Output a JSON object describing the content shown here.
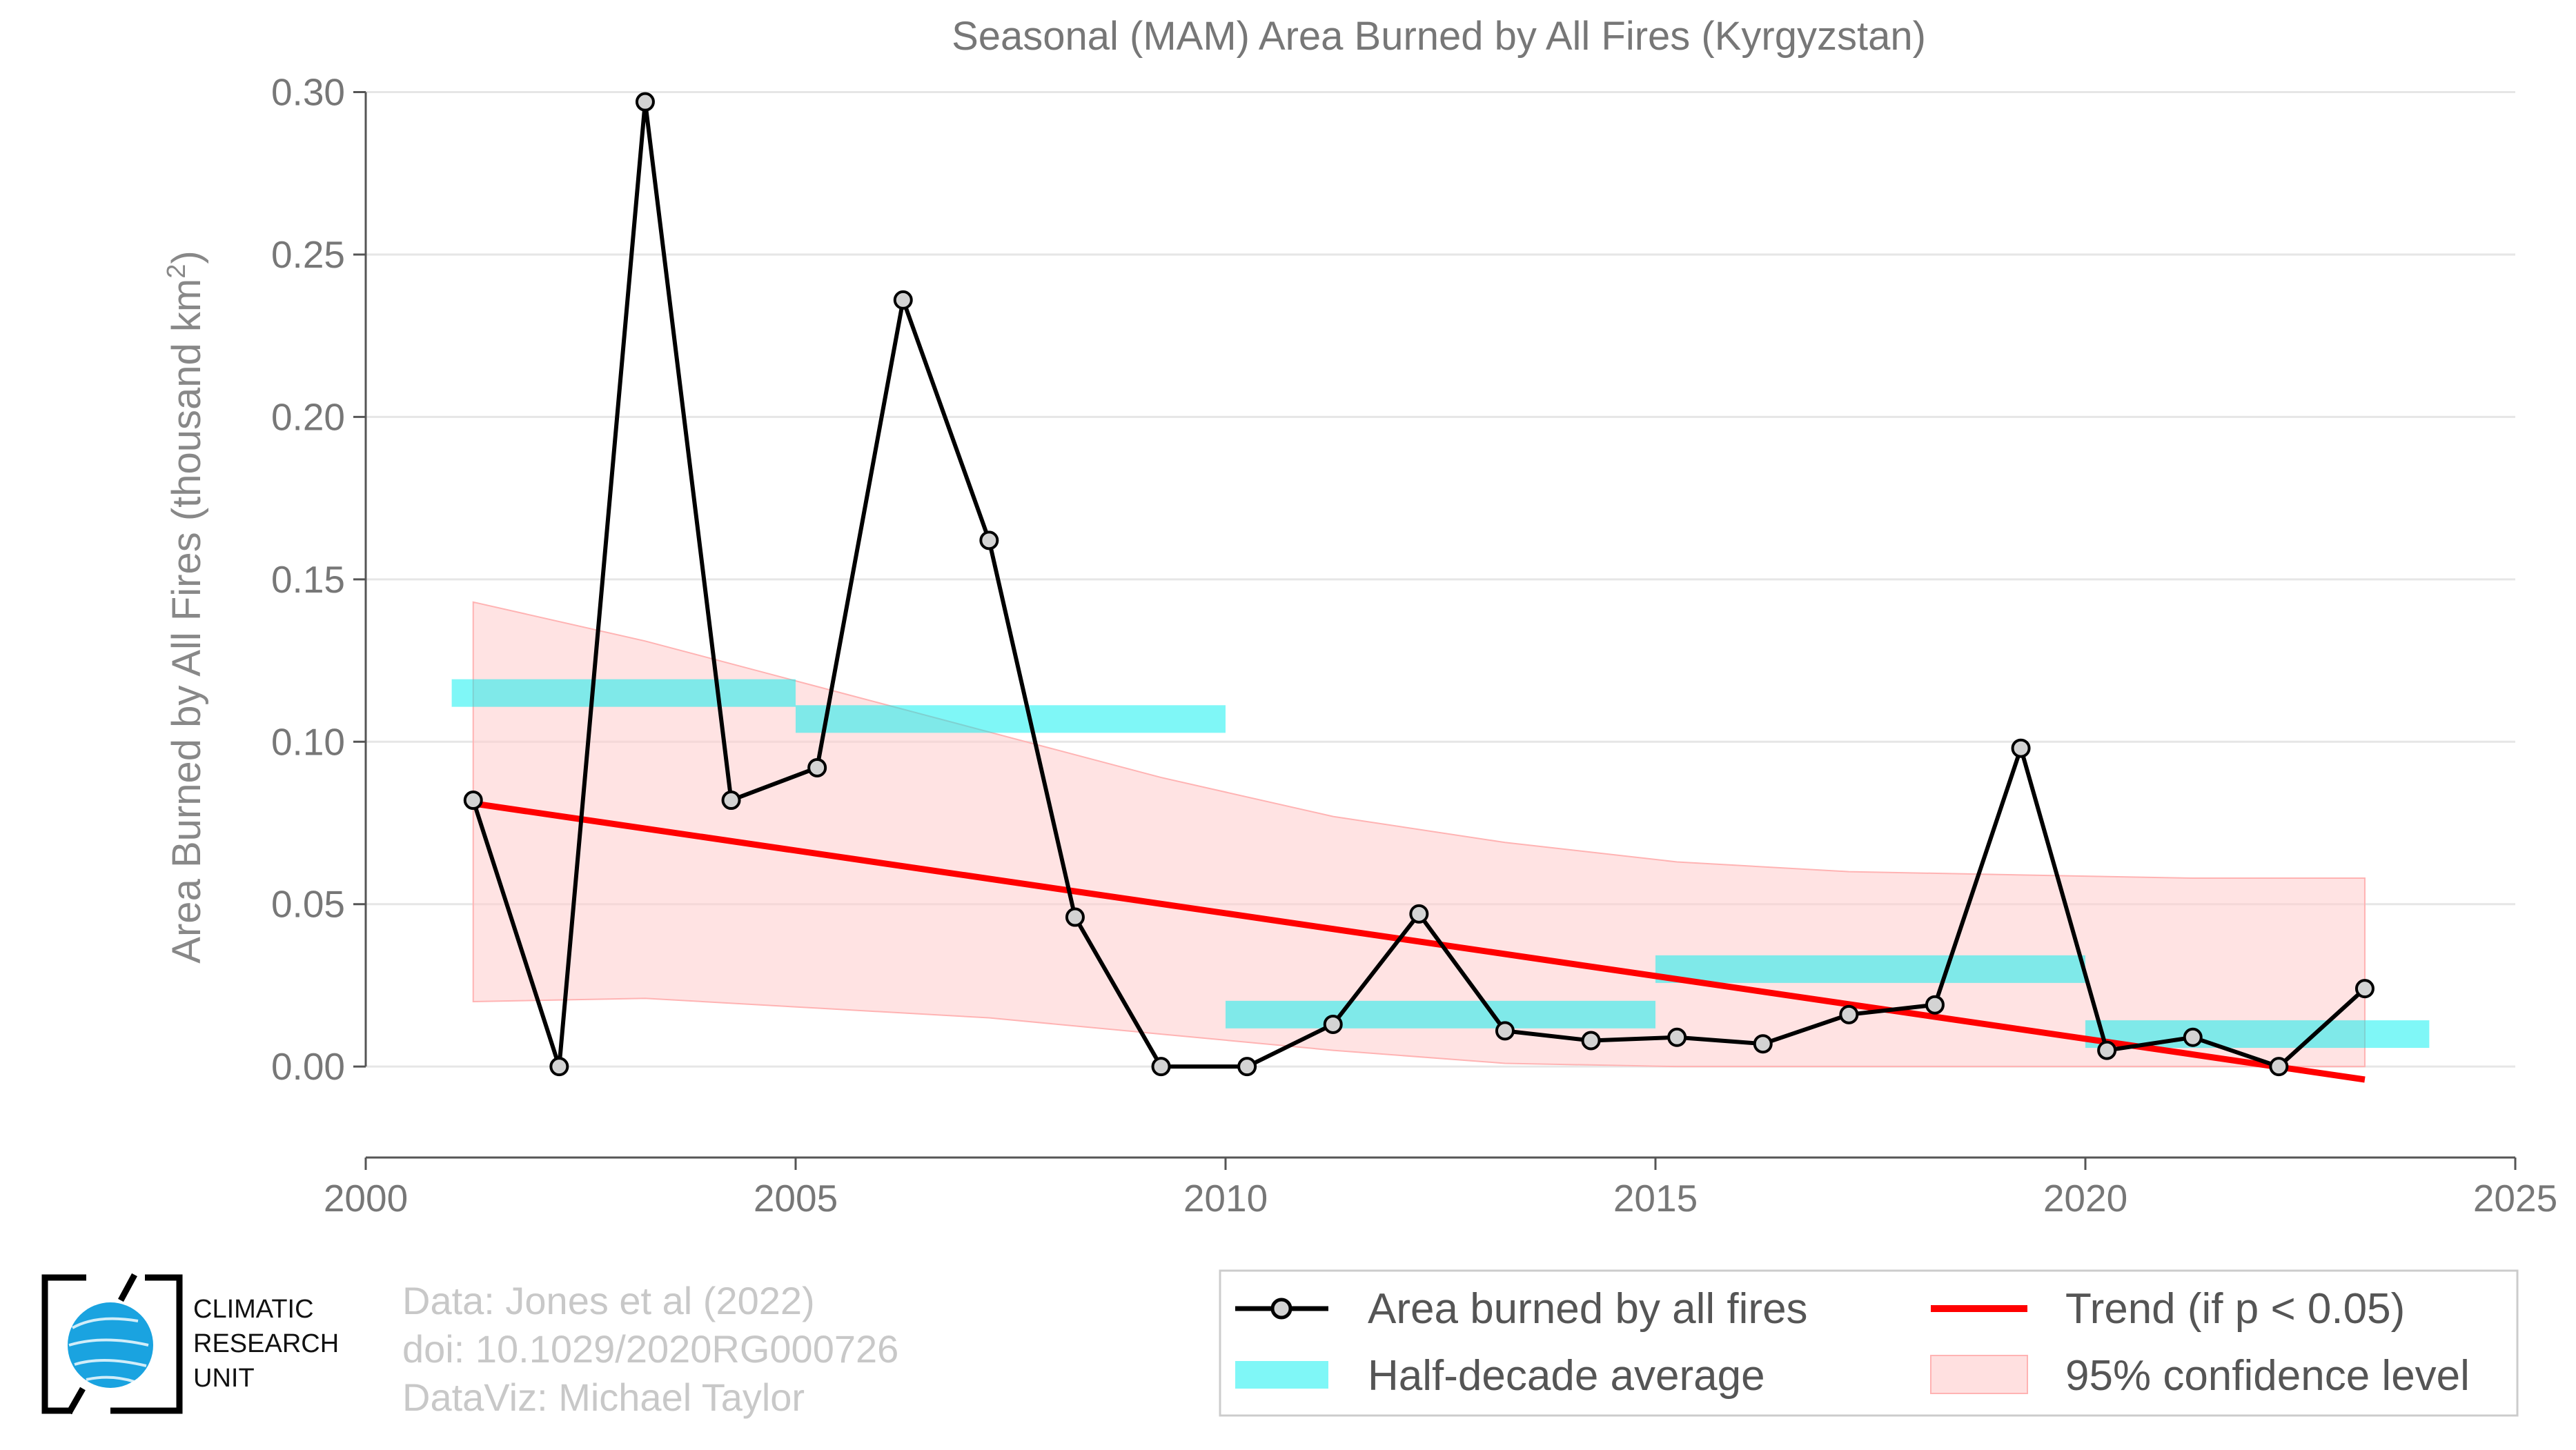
{
  "chart_data": {
    "type": "line",
    "title": "Seasonal (MAM) Area Burned by All Fires (Kyrgyzstan)",
    "xlabel": "",
    "ylabel": "Area Burned by All Fires (thousand km",
    "ylabel_sup": "2",
    "ylabel_end": ")",
    "xlim": [
      2000,
      2025
    ],
    "ylim": [
      -0.028,
      0.305
    ],
    "xticks": [
      2000,
      2005,
      2010,
      2015,
      2020,
      2025
    ],
    "yticks": [
      0.0,
      0.05,
      0.1,
      0.15,
      0.2,
      0.25,
      0.3
    ],
    "ytick_labels": [
      "0.00",
      "0.05",
      "0.10",
      "0.15",
      "0.20",
      "0.25",
      "0.30"
    ],
    "grid": true,
    "legend_position": "bottom-right",
    "series": [
      {
        "name": "Area burned by all fires",
        "kind": "line-markers",
        "color": "#000000",
        "marker_fill": "#d3d3d3",
        "x": [
          2001.25,
          2002.25,
          2003.25,
          2004.25,
          2005.25,
          2006.25,
          2007.25,
          2008.25,
          2009.25,
          2010.25,
          2011.25,
          2012.25,
          2013.25,
          2014.25,
          2015.25,
          2016.25,
          2017.25,
          2018.25,
          2019.25,
          2020.25,
          2021.25,
          2022.25,
          2023.25
        ],
        "y": [
          0.082,
          0.0,
          0.297,
          0.082,
          0.092,
          0.236,
          0.162,
          0.046,
          0.0,
          0.0,
          0.013,
          0.047,
          0.011,
          0.008,
          0.009,
          0.007,
          0.016,
          0.019,
          0.098,
          0.005,
          0.009,
          0.0,
          0.024
        ]
      },
      {
        "name": "Half-decade average",
        "kind": "bars",
        "color": "#00f0f0",
        "segments": [
          {
            "x0": 2001.0,
            "x1": 2005.0,
            "y": 0.115
          },
          {
            "x0": 2005.0,
            "x1": 2010.0,
            "y": 0.107
          },
          {
            "x0": 2010.0,
            "x1": 2015.0,
            "y": 0.016
          },
          {
            "x0": 2015.0,
            "x1": 2020.0,
            "y": 0.03
          },
          {
            "x0": 2020.0,
            "x1": 2024.0,
            "y": 0.01
          }
        ]
      },
      {
        "name": "Trend (if p < 0.05)",
        "kind": "line",
        "color": "#ff0000",
        "x": [
          2001.25,
          2023.25
        ],
        "y": [
          0.081,
          -0.004
        ]
      },
      {
        "name": "95% confidence level",
        "kind": "band",
        "color": "#ffcccc",
        "x": [
          2001.25,
          2003.25,
          2005.25,
          2007.25,
          2009.25,
          2011.25,
          2013.25,
          2015.25,
          2017.25,
          2019.25,
          2021.25,
          2023.25
        ],
        "upper": [
          0.143,
          0.131,
          0.117,
          0.103,
          0.089,
          0.077,
          0.069,
          0.063,
          0.06,
          0.059,
          0.058,
          0.058
        ],
        "lower": [
          0.02,
          0.021,
          0.018,
          0.015,
          0.01,
          0.005,
          0.001,
          0.0,
          0.0,
          0.0,
          0.0,
          0.0
        ]
      }
    ]
  },
  "legend": {
    "items": [
      {
        "label": "Area burned by all fires"
      },
      {
        "label": "Trend (if p < 0.05)"
      },
      {
        "label": "Half-decade average"
      },
      {
        "label": "95% confidence level"
      }
    ]
  },
  "credits": {
    "line1": "Data: Jones et al (2022)",
    "line2": "doi: 10.1029/2020RG000726",
    "line3": "DataViz: Michael Taylor"
  },
  "logo": {
    "line1": "CLIMATIC",
    "line2": "RESEARCH",
    "line3": "UNIT",
    "globe_color": "#1aa3e0"
  }
}
